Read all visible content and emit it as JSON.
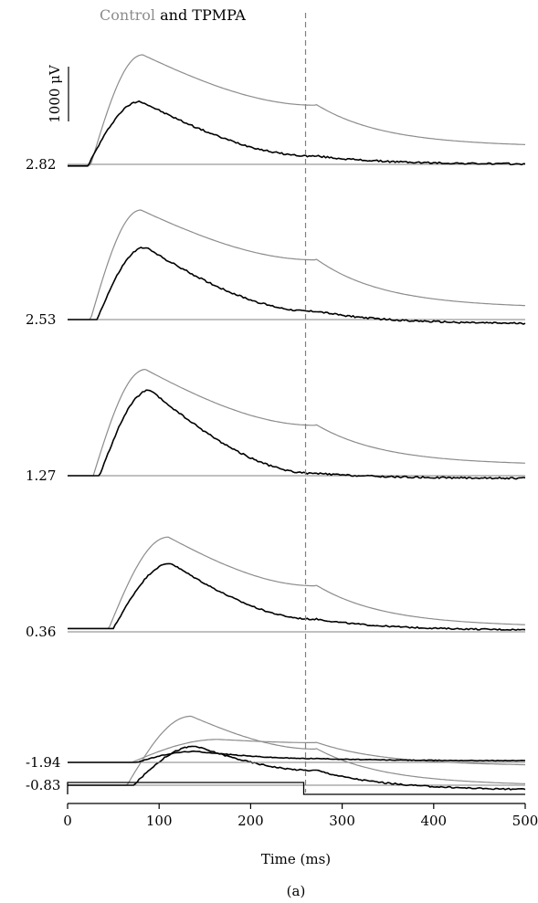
{
  "title": {
    "control_word": "Control",
    "rest": " and TPMPA"
  },
  "colors": {
    "control": "#8c8c8c",
    "tpmpa": "#000000",
    "baseline": "#808080",
    "marker": "#808080",
    "axis": "#000000"
  },
  "scale_bar": {
    "label": "1000 μV",
    "value_uV": 1000
  },
  "marker": {
    "time_ms": 260,
    "style": "dashed"
  },
  "stimulus": {
    "on_ms": 0,
    "off_ms": 258
  },
  "panel_label": "(a)",
  "chart_data": {
    "type": "line",
    "title": "Control and TPMPA",
    "xlabel": "Time (ms)",
    "ylabel": "",
    "xlim": [
      0,
      500
    ],
    "x_ticks": [
      0,
      100,
      200,
      300,
      400,
      500
    ],
    "series_names": [
      "Control",
      "TPMPA"
    ],
    "traces": [
      {
        "intensity_label": "2.82",
        "control": {
          "pre": -20,
          "onset": 25,
          "peak_t": 82,
          "peak": 2000,
          "plateau": 1080,
          "tail": 330
        },
        "tpmpa": {
          "pre": -30,
          "onset": 22,
          "peak_t": 80,
          "peak": 1150,
          "plateau": 150,
          "tail": 0,
          "noise": 15
        }
      },
      {
        "intensity_label": "2.53",
        "control": {
          "pre": 0,
          "onset": 25,
          "peak_t": 80,
          "peak": 2000,
          "plateau": 1090,
          "tail": 220
        },
        "tpmpa": {
          "pre": 0,
          "onset": 32,
          "peak_t": 85,
          "peak": 1320,
          "plateau": 150,
          "tail": -80,
          "noise": 15
        }
      },
      {
        "intensity_label": "1.27",
        "control": {
          "pre": 0,
          "onset": 28,
          "peak_t": 85,
          "peak": 1940,
          "plateau": 920,
          "tail": 200
        },
        "tpmpa": {
          "pre": 0,
          "onset": 35,
          "peak_t": 90,
          "peak": 1560,
          "plateau": 40,
          "tail": -50,
          "noise": 15
        }
      },
      {
        "intensity_label": "0.36",
        "control": {
          "pre": 60,
          "onset": 45,
          "peak_t": 110,
          "peak": 1730,
          "plateau": 840,
          "tail": 100
        },
        "tpmpa": {
          "pre": 60,
          "onset": 50,
          "peak_t": 113,
          "peak": 1250,
          "plateau": 230,
          "tail": 30,
          "noise": 12
        }
      },
      {
        "intensity_label": "-0.83",
        "control": {
          "pre": 0,
          "onset": 65,
          "peak_t": 135,
          "peak": 1260,
          "plateau": 660,
          "tail": 0
        },
        "tpmpa": {
          "pre": 0,
          "onset": 72,
          "peak_t": 140,
          "peak": 710,
          "plateau": 270,
          "tail": -90,
          "noise": 12
        }
      },
      {
        "intensity_label": "-1.94",
        "control": {
          "pre": 0,
          "onset": 70,
          "peak_t": 165,
          "peak": 420,
          "plateau": 360,
          "tail": -60
        },
        "tpmpa": {
          "pre": 0,
          "onset": 75,
          "peak_t": 140,
          "peak": 200,
          "plateau": 70,
          "tail": 30,
          "noise": 6
        }
      }
    ]
  }
}
